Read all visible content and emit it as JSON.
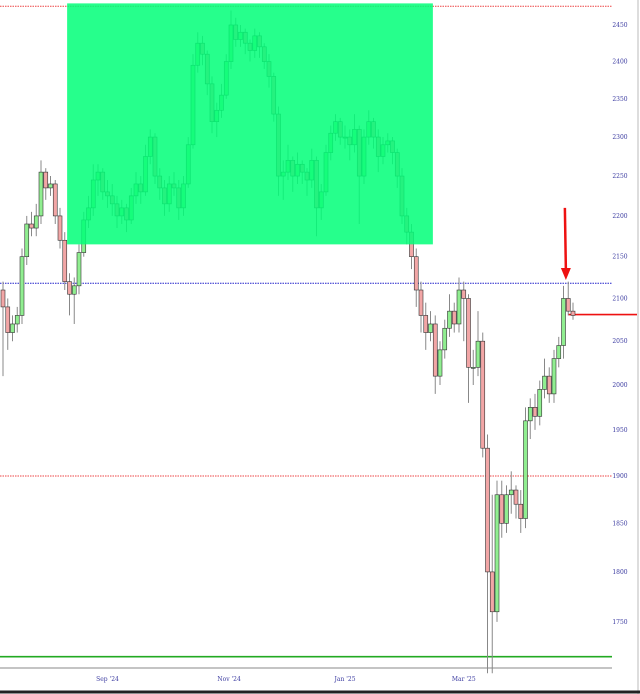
{
  "chart_data": {
    "type": "candlestick",
    "title": "",
    "xlabel": "",
    "ylabel": "",
    "y_scale": "log",
    "ylim": [
      1695,
      2480
    ],
    "grid": false,
    "y_ticks": [
      2450,
      2400,
      2350,
      2300,
      2250,
      2200,
      2150,
      2100,
      2050,
      2000,
      1950,
      1900,
      1850,
      1800,
      1750
    ],
    "x_ticks": [
      {
        "label": "Sep '24",
        "index": 22
      },
      {
        "label": "Nov '24",
        "index": 47.6
      },
      {
        "label": "Jan '25",
        "index": 72
      },
      {
        "label": "Mar '25",
        "index": 97
      }
    ],
    "colors": {
      "up": "#90ee90",
      "down": "#f2a6a6",
      "border": "#333333",
      "wick": "#888888",
      "axis_text": "#3a3aa0"
    },
    "ohlc": [
      [
        2110,
        2120,
        2010,
        2090
      ],
      [
        2090,
        2100,
        2040,
        2060
      ],
      [
        2060,
        2080,
        2050,
        2070
      ],
      [
        2070,
        2090,
        2060,
        2080
      ],
      [
        2080,
        2160,
        2070,
        2150
      ],
      [
        2150,
        2200,
        2140,
        2190
      ],
      [
        2190,
        2205,
        2175,
        2185
      ],
      [
        2185,
        2215,
        2175,
        2200
      ],
      [
        2200,
        2270,
        2190,
        2255
      ],
      [
        2255,
        2260,
        2220,
        2235
      ],
      [
        2235,
        2250,
        2225,
        2240
      ],
      [
        2240,
        2245,
        2190,
        2200
      ],
      [
        2200,
        2210,
        2160,
        2170
      ],
      [
        2170,
        2180,
        2110,
        2120
      ],
      [
        2120,
        2130,
        2080,
        2105
      ],
      [
        2105,
        2125,
        2070,
        2115
      ],
      [
        2115,
        2165,
        2105,
        2155
      ],
      [
        2155,
        2205,
        2150,
        2195
      ],
      [
        2195,
        2225,
        2185,
        2210
      ],
      [
        2210,
        2265,
        2200,
        2245
      ],
      [
        2245,
        2265,
        2225,
        2255
      ],
      [
        2255,
        2260,
        2220,
        2230
      ],
      [
        2230,
        2245,
        2210,
        2225
      ],
      [
        2225,
        2240,
        2200,
        2215
      ],
      [
        2215,
        2225,
        2185,
        2200
      ],
      [
        2200,
        2220,
        2190,
        2210
      ],
      [
        2210,
        2215,
        2180,
        2195
      ],
      [
        2195,
        2235,
        2190,
        2225
      ],
      [
        2225,
        2255,
        2215,
        2240
      ],
      [
        2240,
        2250,
        2215,
        2230
      ],
      [
        2230,
        2290,
        2225,
        2275
      ],
      [
        2275,
        2310,
        2265,
        2300
      ],
      [
        2300,
        2305,
        2240,
        2250
      ],
      [
        2250,
        2260,
        2220,
        2235
      ],
      [
        2235,
        2245,
        2200,
        2215
      ],
      [
        2215,
        2250,
        2205,
        2240
      ],
      [
        2240,
        2255,
        2225,
        2235
      ],
      [
        2235,
        2245,
        2195,
        2210
      ],
      [
        2210,
        2250,
        2200,
        2240
      ],
      [
        2240,
        2300,
        2235,
        2290
      ],
      [
        2290,
        2410,
        2285,
        2395
      ],
      [
        2395,
        2440,
        2385,
        2425
      ],
      [
        2425,
        2435,
        2395,
        2410
      ],
      [
        2410,
        2415,
        2355,
        2370
      ],
      [
        2370,
        2380,
        2305,
        2320
      ],
      [
        2320,
        2345,
        2300,
        2335
      ],
      [
        2335,
        2370,
        2325,
        2355
      ],
      [
        2355,
        2410,
        2350,
        2400
      ],
      [
        2400,
        2470,
        2390,
        2450
      ],
      [
        2450,
        2460,
        2420,
        2430
      ],
      [
        2430,
        2450,
        2420,
        2440
      ],
      [
        2440,
        2445,
        2410,
        2425
      ],
      [
        2425,
        2430,
        2400,
        2415
      ],
      [
        2415,
        2445,
        2405,
        2435
      ],
      [
        2435,
        2440,
        2405,
        2420
      ],
      [
        2420,
        2425,
        2390,
        2400
      ],
      [
        2400,
        2410,
        2365,
        2380
      ],
      [
        2380,
        2385,
        2320,
        2330
      ],
      [
        2330,
        2340,
        2225,
        2250
      ],
      [
        2250,
        2270,
        2220,
        2255
      ],
      [
        2255,
        2290,
        2245,
        2270
      ],
      [
        2270,
        2275,
        2230,
        2250
      ],
      [
        2250,
        2280,
        2240,
        2265
      ],
      [
        2265,
        2270,
        2240,
        2255
      ],
      [
        2255,
        2260,
        2225,
        2245
      ],
      [
        2245,
        2285,
        2235,
        2270
      ],
      [
        2270,
        2275,
        2175,
        2210
      ],
      [
        2210,
        2240,
        2195,
        2230
      ],
      [
        2230,
        2290,
        2225,
        2280
      ],
      [
        2280,
        2315,
        2270,
        2305
      ],
      [
        2305,
        2330,
        2295,
        2320
      ],
      [
        2320,
        2325,
        2290,
        2300
      ],
      [
        2300,
        2315,
        2285,
        2300
      ],
      [
        2300,
        2310,
        2270,
        2290
      ],
      [
        2290,
        2330,
        2280,
        2310
      ],
      [
        2310,
        2315,
        2190,
        2250
      ],
      [
        2250,
        2310,
        2240,
        2300
      ],
      [
        2300,
        2335,
        2290,
        2320
      ],
      [
        2320,
        2325,
        2285,
        2300
      ],
      [
        2300,
        2310,
        2255,
        2275
      ],
      [
        2275,
        2300,
        2265,
        2290
      ],
      [
        2290,
        2305,
        2280,
        2295
      ],
      [
        2295,
        2300,
        2265,
        2280
      ],
      [
        2280,
        2285,
        2235,
        2250
      ],
      [
        2250,
        2260,
        2190,
        2200
      ],
      [
        2200,
        2210,
        2165,
        2180
      ],
      [
        2180,
        2190,
        2135,
        2150
      ],
      [
        2150,
        2160,
        2090,
        2110
      ],
      [
        2110,
        2120,
        2060,
        2080
      ],
      [
        2080,
        2095,
        2040,
        2060
      ],
      [
        2060,
        2085,
        2050,
        2070
      ],
      [
        2070,
        2080,
        1990,
        2010
      ],
      [
        2010,
        2050,
        2000,
        2040
      ],
      [
        2040,
        2075,
        2030,
        2065
      ],
      [
        2065,
        2105,
        2055,
        2085
      ],
      [
        2085,
        2095,
        2060,
        2070
      ],
      [
        2070,
        2125,
        2060,
        2110
      ],
      [
        2110,
        2120,
        2050,
        2100
      ],
      [
        2100,
        2105,
        1980,
        2020
      ],
      [
        2020,
        2040,
        2000,
        2020
      ],
      [
        2020,
        2085,
        2010,
        2050
      ],
      [
        2050,
        2060,
        1920,
        1930
      ],
      [
        1930,
        1945,
        1700,
        1800
      ],
      [
        1800,
        1880,
        1700,
        1760
      ],
      [
        1760,
        1895,
        1750,
        1880
      ],
      [
        1880,
        1895,
        1835,
        1850
      ],
      [
        1850,
        1890,
        1840,
        1880
      ],
      [
        1880,
        1905,
        1860,
        1885
      ],
      [
        1885,
        1890,
        1855,
        1870
      ],
      [
        1870,
        1885,
        1840,
        1855
      ],
      [
        1855,
        1975,
        1845,
        1960
      ],
      [
        1960,
        1985,
        1940,
        1975
      ],
      [
        1975,
        1990,
        1950,
        1965
      ],
      [
        1965,
        2005,
        1955,
        1995
      ],
      [
        1995,
        2030,
        1985,
        2010
      ],
      [
        2010,
        2020,
        1980,
        1990
      ],
      [
        1990,
        2040,
        1980,
        2030
      ],
      [
        2030,
        2055,
        2020,
        2045
      ],
      [
        2045,
        2115,
        2030,
        2100
      ],
      [
        2100,
        2120,
        2080,
        2085
      ],
      [
        2085,
        2095,
        2075,
        2080
      ]
    ],
    "annotations": {
      "highlight_zone": {
        "from_index": 13.5,
        "to_index": 90.5,
        "price_low": 2165,
        "price_high": 2480,
        "color": "#00ff78"
      },
      "horizontal_lines": [
        {
          "price": 2476,
          "style": "dotted",
          "color": "#ee4444"
        },
        {
          "price": 2118,
          "style": "dotted",
          "color": "#2222cc"
        },
        {
          "price": 1900,
          "style": "dotted",
          "color": "#ee4444"
        },
        {
          "price": 1716,
          "style": "solid",
          "color": "#22aa22"
        },
        {
          "price": 2081,
          "style": "solid",
          "color": "#ee1111",
          "from_index": 119
        }
      ],
      "arrow": {
        "index": 118.5,
        "price_from": 2210,
        "price_to": 2122,
        "color": "#ee1111"
      }
    }
  }
}
